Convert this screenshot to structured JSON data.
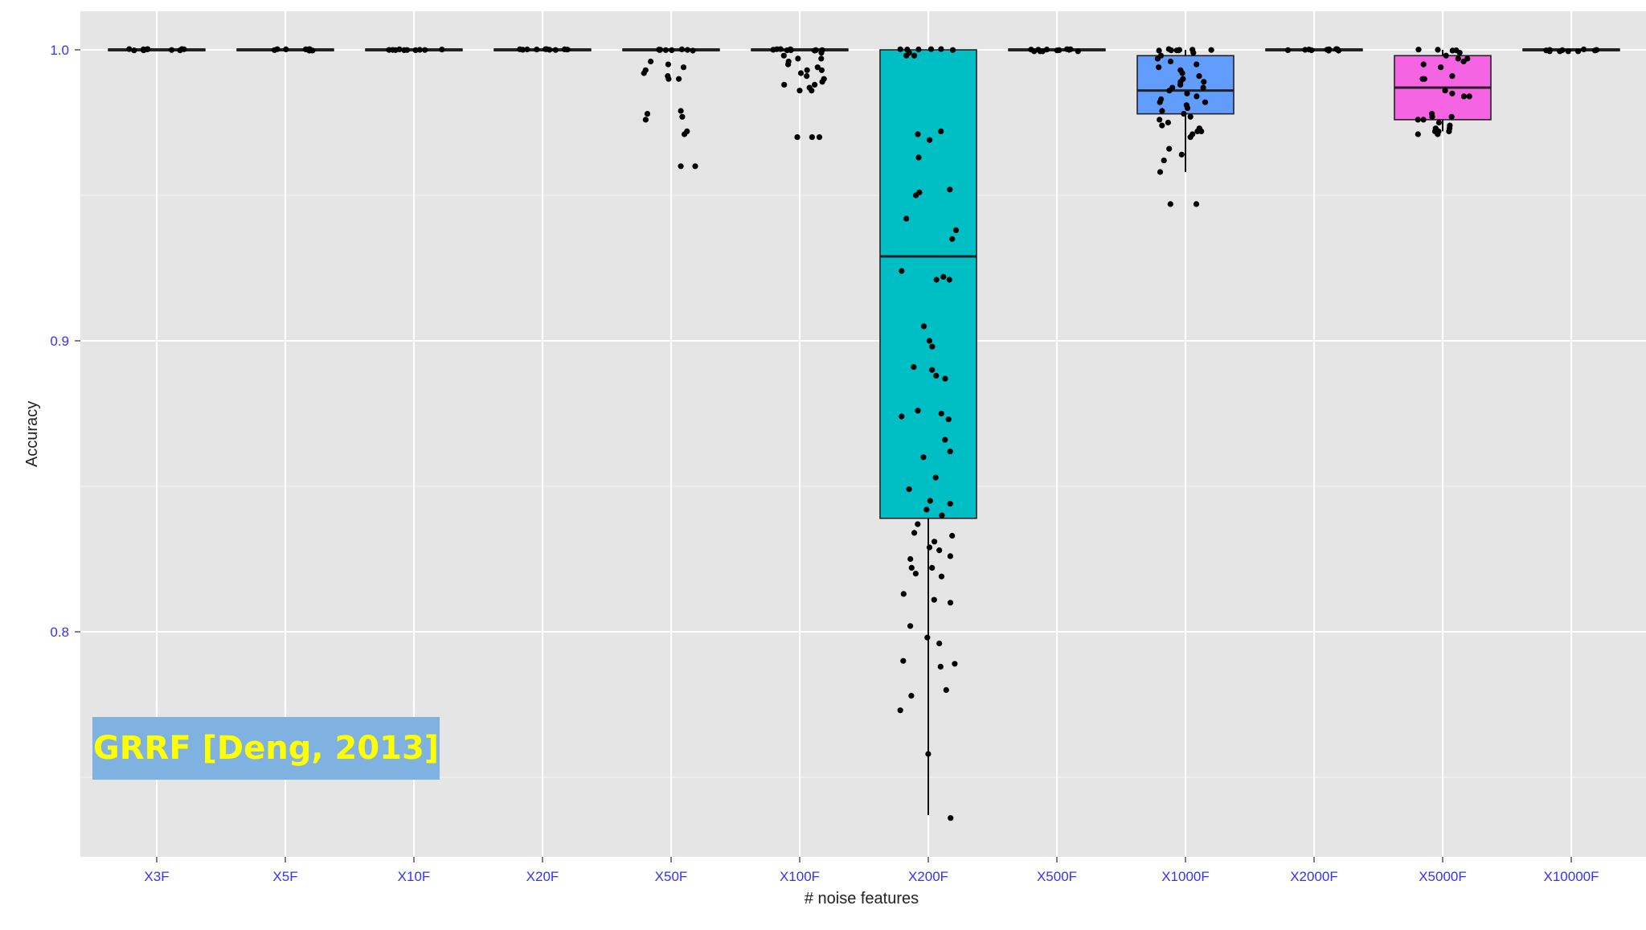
{
  "chart_data": {
    "type": "boxplot",
    "xlabel": "# noise features",
    "ylabel": "Accuracy",
    "ylim": [
      0.73,
      1.013
    ],
    "yticks": [
      0.8,
      0.9,
      1.0
    ],
    "ytick_labels": [
      "0.8",
      "0.9",
      "1.0"
    ],
    "grid": true,
    "tick_label_color": "#3333ff",
    "panel_color": "#e5e5e5",
    "categories": [
      "X3F",
      "X5F",
      "X10F",
      "X20F",
      "X50F",
      "X100F",
      "X200F",
      "X500F",
      "X1000F",
      "X2000F",
      "X5000F",
      "X10000F"
    ],
    "boxes": [
      {
        "category": "X3F",
        "q1": 1.0,
        "median": 1.0,
        "q3": 1.0,
        "whisker_low": 1.0,
        "whisker_high": 1.0,
        "fill": "#ffffff",
        "points": [
          1.0,
          1.0,
          1.0,
          1.0,
          1.0,
          1.0,
          1.0,
          1.0,
          1.0,
          1.0
        ]
      },
      {
        "category": "X5F",
        "q1": 1.0,
        "median": 1.0,
        "q3": 1.0,
        "whisker_low": 1.0,
        "whisker_high": 1.0,
        "fill": "#ffffff",
        "points": [
          1.0,
          1.0,
          1.0,
          1.0,
          1.0,
          1.0,
          1.0,
          1.0,
          1.0,
          1.0
        ]
      },
      {
        "category": "X10F",
        "q1": 1.0,
        "median": 1.0,
        "q3": 1.0,
        "whisker_low": 1.0,
        "whisker_high": 1.0,
        "fill": "#ffffff",
        "points": [
          1.0,
          1.0,
          1.0,
          1.0,
          1.0,
          1.0,
          1.0,
          1.0,
          1.0,
          1.0
        ]
      },
      {
        "category": "X20F",
        "q1": 1.0,
        "median": 1.0,
        "q3": 1.0,
        "whisker_low": 1.0,
        "whisker_high": 1.0,
        "fill": "#ffffff",
        "points": [
          1.0,
          1.0,
          1.0,
          1.0,
          1.0,
          1.0,
          1.0,
          1.0,
          1.0,
          1.0
        ]
      },
      {
        "category": "X50F",
        "q1": 1.0,
        "median": 1.0,
        "q3": 1.0,
        "whisker_low": 1.0,
        "whisker_high": 1.0,
        "fill": "#ffffff",
        "points": [
          1.0,
          1.0,
          1.0,
          1.0,
          1.0,
          1.0,
          1.0,
          1.0,
          0.996,
          0.995,
          0.994,
          0.993,
          0.992,
          0.991,
          0.99,
          0.99,
          0.979,
          0.978,
          0.977,
          0.976,
          0.972,
          0.971,
          0.96,
          0.96
        ]
      },
      {
        "category": "X100F",
        "q1": 1.0,
        "median": 1.0,
        "q3": 1.0,
        "whisker_low": 1.0,
        "whisker_high": 1.0,
        "fill": "#ffffff",
        "points": [
          1.0,
          1.0,
          1.0,
          1.0,
          1.0,
          1.0,
          1.0,
          1.0,
          1.0,
          1.0,
          0.999,
          0.998,
          0.997,
          0.997,
          0.996,
          0.995,
          0.994,
          0.993,
          0.993,
          0.992,
          0.991,
          0.99,
          0.989,
          0.988,
          0.988,
          0.987,
          0.986,
          0.986,
          0.97,
          0.97,
          0.97
        ]
      },
      {
        "category": "X200F",
        "q1": 0.839,
        "median": 0.929,
        "q3": 1.0,
        "whisker_low": 0.737,
        "whisker_high": 1.0,
        "fill": "#00bfc4",
        "points": [
          1.0,
          1.0,
          1.0,
          1.0,
          1.0,
          1.0,
          0.999,
          0.998,
          0.998,
          0.972,
          0.971,
          0.969,
          0.963,
          0.952,
          0.951,
          0.95,
          0.942,
          0.938,
          0.935,
          0.924,
          0.922,
          0.921,
          0.921,
          0.905,
          0.9,
          0.898,
          0.891,
          0.89,
          0.888,
          0.887,
          0.876,
          0.875,
          0.874,
          0.873,
          0.866,
          0.862,
          0.86,
          0.853,
          0.849,
          0.845,
          0.844,
          0.842,
          0.84,
          0.837,
          0.834,
          0.833,
          0.831,
          0.829,
          0.828,
          0.826,
          0.825,
          0.822,
          0.822,
          0.82,
          0.819,
          0.813,
          0.811,
          0.81,
          0.802,
          0.798,
          0.796,
          0.79,
          0.789,
          0.788,
          0.78,
          0.778,
          0.773,
          0.758,
          0.736
        ]
      },
      {
        "category": "X500F",
        "q1": 1.0,
        "median": 1.0,
        "q3": 1.0,
        "whisker_low": 0.9995,
        "whisker_high": 1.0,
        "fill": "#ffffff",
        "points": [
          1.0,
          1.0,
          1.0,
          1.0,
          1.0,
          1.0,
          1.0,
          1.0,
          0.9995,
          0.9995,
          0.9995,
          0.9995
        ]
      },
      {
        "category": "X1000F",
        "q1": 0.978,
        "median": 0.986,
        "q3": 0.998,
        "whisker_low": 0.958,
        "whisker_high": 1.0,
        "fill": "#619cff",
        "points": [
          1.0,
          1.0,
          1.0,
          1.0,
          1.0,
          1.0,
          1.0,
          1.0,
          0.999,
          0.998,
          0.997,
          0.996,
          0.995,
          0.994,
          0.993,
          0.992,
          0.991,
          0.99,
          0.989,
          0.989,
          0.988,
          0.987,
          0.987,
          0.986,
          0.985,
          0.984,
          0.983,
          0.982,
          0.982,
          0.981,
          0.98,
          0.979,
          0.978,
          0.977,
          0.976,
          0.975,
          0.974,
          0.973,
          0.972,
          0.972,
          0.971,
          0.97,
          0.966,
          0.964,
          0.962,
          0.958,
          0.947,
          0.947
        ]
      },
      {
        "category": "X2000F",
        "q1": 1.0,
        "median": 1.0,
        "q3": 1.0,
        "whisker_low": 1.0,
        "whisker_high": 1.0,
        "fill": "#ffffff",
        "points": [
          1.0,
          1.0,
          1.0,
          1.0,
          1.0,
          1.0,
          1.0,
          1.0,
          1.0,
          1.0
        ]
      },
      {
        "category": "X5000F",
        "q1": 0.976,
        "median": 0.987,
        "q3": 0.998,
        "whisker_low": 0.972,
        "whisker_high": 1.0,
        "fill": "#f564e3",
        "points": [
          1.0,
          1.0,
          1.0,
          1.0,
          0.999,
          0.998,
          0.997,
          0.997,
          0.996,
          0.995,
          0.994,
          0.991,
          0.99,
          0.99,
          0.986,
          0.985,
          0.984,
          0.984,
          0.978,
          0.977,
          0.977,
          0.976,
          0.976,
          0.975,
          0.974,
          0.973,
          0.973,
          0.972,
          0.972,
          0.972,
          0.971,
          0.971
        ]
      },
      {
        "category": "X10000F",
        "q1": 1.0,
        "median": 1.0,
        "q3": 1.0,
        "whisker_low": 0.9995,
        "whisker_high": 1.0,
        "fill": "#ffffff",
        "points": [
          1.0,
          1.0,
          1.0,
          1.0,
          1.0,
          1.0,
          0.9995,
          0.9995,
          0.9995,
          0.9995
        ]
      }
    ]
  },
  "annotation": {
    "text": "GRRF [Deng, 2013]",
    "background": "#7fb2e0",
    "color": "#ffff00"
  }
}
